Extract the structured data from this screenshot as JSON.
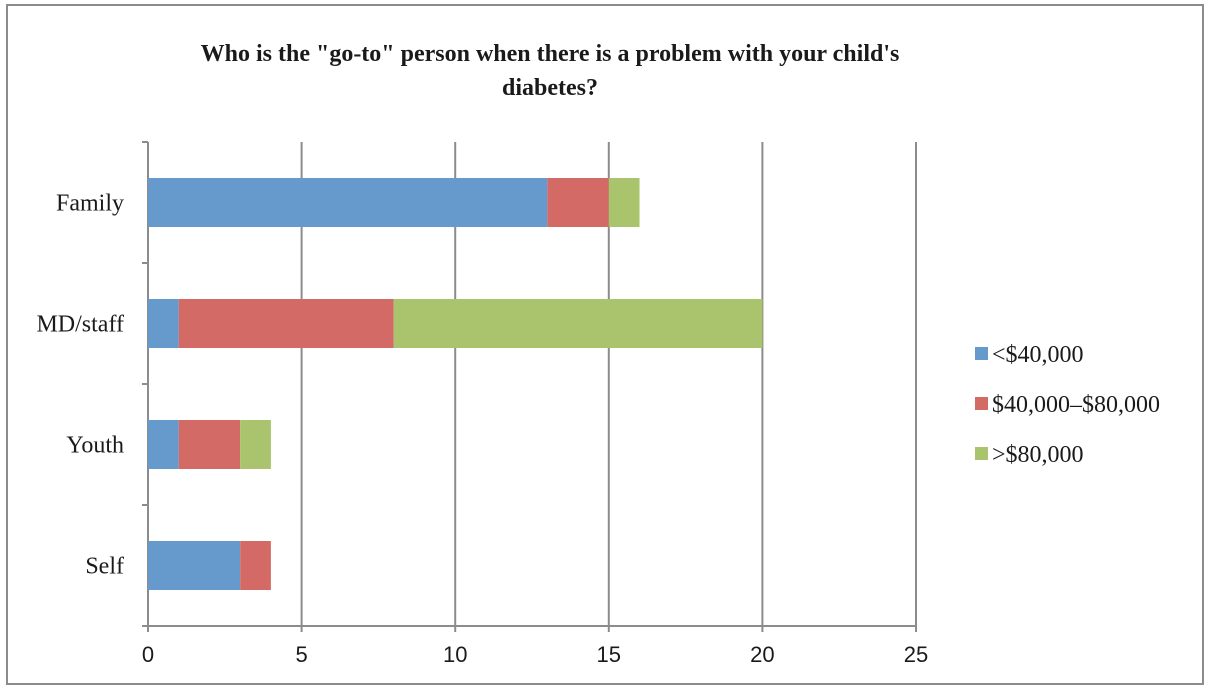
{
  "chart_data": {
    "type": "bar",
    "orientation": "horizontal",
    "stacked": true,
    "title": "Who is the \"go-to\" person when there is a problem with your child's diabetes?",
    "title_lines": [
      "Who is the \"go-to\" person when there is a problem with your child's",
      "diabetes?"
    ],
    "categories": [
      "Family",
      "MD/staff",
      "Youth",
      "Self"
    ],
    "series": [
      {
        "name": "<$40,000",
        "color": "#6699cc",
        "values": [
          13,
          1,
          1,
          3
        ]
      },
      {
        "name": "$40,000–$80,000",
        "color": "#d46a66",
        "values": [
          2,
          7,
          2,
          1
        ]
      },
      {
        "name": ">$80,000",
        "color": "#a9c46c",
        "values": [
          1,
          12,
          1,
          0
        ]
      }
    ],
    "xlim": [
      0,
      25
    ],
    "x_ticks": [
      0,
      5,
      10,
      15,
      20,
      25
    ],
    "xlabel": "",
    "ylabel": "",
    "grid": "vertical major gridlines",
    "legend_position": "right"
  }
}
